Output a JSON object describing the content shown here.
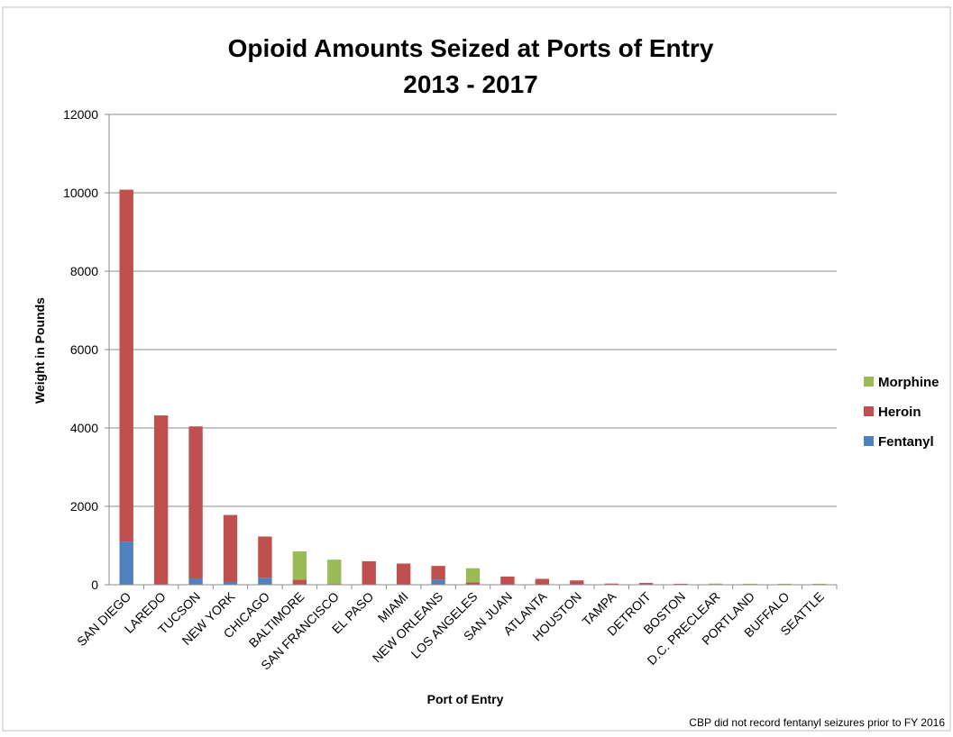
{
  "chart_data": {
    "type": "bar",
    "stacked": true,
    "title_line1": "Opioid Amounts Seized at Ports of Entry",
    "title_line2": "2013 - 2017",
    "xlabel": "Port of Entry",
    "ylabel": "Weight in Pounds",
    "ylim": [
      0,
      12000
    ],
    "yticks": [
      "0",
      "2000",
      "4000",
      "6000",
      "8000",
      "10000",
      "12000"
    ],
    "grid": "horizontal",
    "legend_position": "right",
    "categories": [
      "SAN DIEGO",
      "LAREDO",
      "TUCSON",
      "NEW YORK",
      "CHICAGO",
      "BALTIMORE",
      "SAN FRANCISCO",
      "EL PASO",
      "MIAMI",
      "NEW ORLEANS",
      "LOS ANGELES",
      "SAN JUAN",
      "ATLANTA",
      "HOUSTON",
      "TAMPA",
      "DETROIT",
      "BOSTON",
      "D.C. PRECLEAR",
      "PORTLAND",
      "BUFFALO",
      "SEATTLE"
    ],
    "series": [
      {
        "name": "Fentanyl",
        "color": "#4f81bd",
        "values": [
          1100,
          0,
          160,
          80,
          180,
          0,
          0,
          0,
          0,
          130,
          0,
          0,
          0,
          0,
          0,
          0,
          0,
          0,
          0,
          0,
          0
        ]
      },
      {
        "name": "Heroin",
        "color": "#c0504d",
        "values": [
          8980,
          4320,
          3880,
          1700,
          1050,
          130,
          20,
          600,
          540,
          350,
          60,
          210,
          150,
          110,
          30,
          45,
          25,
          10,
          5,
          5,
          5
        ]
      },
      {
        "name": "Morphine",
        "color": "#9bbb59",
        "values": [
          0,
          0,
          0,
          0,
          0,
          720,
          620,
          0,
          0,
          0,
          360,
          0,
          0,
          0,
          0,
          0,
          0,
          20,
          20,
          20,
          20
        ]
      }
    ],
    "footnote": "CBP did not record fentanyl seizures prior to FY 2016"
  }
}
